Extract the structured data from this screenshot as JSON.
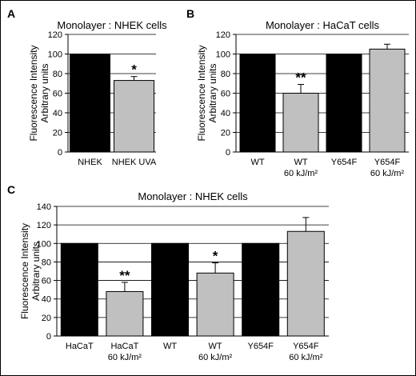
{
  "chart_data": [
    {
      "panel": "A",
      "type": "bar",
      "title": "Monolayer : NHEK cells",
      "ylabel": [
        "Fluorescence Intensity",
        "Arbitrary units"
      ],
      "ylim": [
        0,
        120
      ],
      "yticks": [
        0,
        20,
        40,
        60,
        80,
        100,
        120
      ],
      "grid": true,
      "bars": [
        {
          "label": [
            "NHEK"
          ],
          "value": 100,
          "error": 0,
          "color": "#000000",
          "sig": ""
        },
        {
          "label": [
            "NHEK UVA"
          ],
          "value": 73,
          "error": 4,
          "color": "#c0c0c0",
          "sig": "*"
        }
      ]
    },
    {
      "panel": "B",
      "type": "bar",
      "title": "Monolayer : HaCaT cells",
      "ylabel": [
        "Fluorescence Intensity",
        "Arbitrary units"
      ],
      "ylim": [
        0,
        120
      ],
      "yticks": [
        0,
        20,
        40,
        60,
        80,
        100,
        120
      ],
      "grid": true,
      "bars": [
        {
          "label": [
            "WT"
          ],
          "value": 100,
          "error": 0,
          "color": "#000000",
          "sig": ""
        },
        {
          "label": [
            "WT",
            "60 kJ/m²"
          ],
          "value": 60,
          "error": 9,
          "color": "#c0c0c0",
          "sig": "**"
        },
        {
          "label": [
            "Y654F"
          ],
          "value": 100,
          "error": 0,
          "color": "#000000",
          "sig": ""
        },
        {
          "label": [
            "Y654F",
            "60 kJ/m²"
          ],
          "value": 105,
          "error": 5,
          "color": "#c0c0c0",
          "sig": ""
        }
      ]
    },
    {
      "panel": "C",
      "type": "bar",
      "title": "Monolayer : NHEK cells",
      "ylabel": [
        "Fluorescence Intensity",
        "Arbitrary units"
      ],
      "ylim": [
        0,
        140
      ],
      "yticks": [
        0,
        20,
        40,
        60,
        80,
        100,
        120,
        140
      ],
      "grid": true,
      "bars": [
        {
          "label": [
            "HaCaT"
          ],
          "value": 100,
          "error": 0,
          "color": "#000000",
          "sig": ""
        },
        {
          "label": [
            "HaCaT",
            "60 kJ/m²"
          ],
          "value": 48,
          "error": 10,
          "color": "#c0c0c0",
          "sig": "**"
        },
        {
          "label": [
            "WT"
          ],
          "value": 100,
          "error": 0,
          "color": "#000000",
          "sig": ""
        },
        {
          "label": [
            "WT",
            "60 kJ/m²"
          ],
          "value": 68,
          "error": 11,
          "color": "#c0c0c0",
          "sig": "*"
        },
        {
          "label": [
            "Y654F"
          ],
          "value": 100,
          "error": 0,
          "color": "#000000",
          "sig": ""
        },
        {
          "label": [
            "Y654F",
            "60 kJ/m²"
          ],
          "value": 113,
          "error": 15,
          "color": "#c0c0c0",
          "sig": ""
        }
      ]
    }
  ]
}
